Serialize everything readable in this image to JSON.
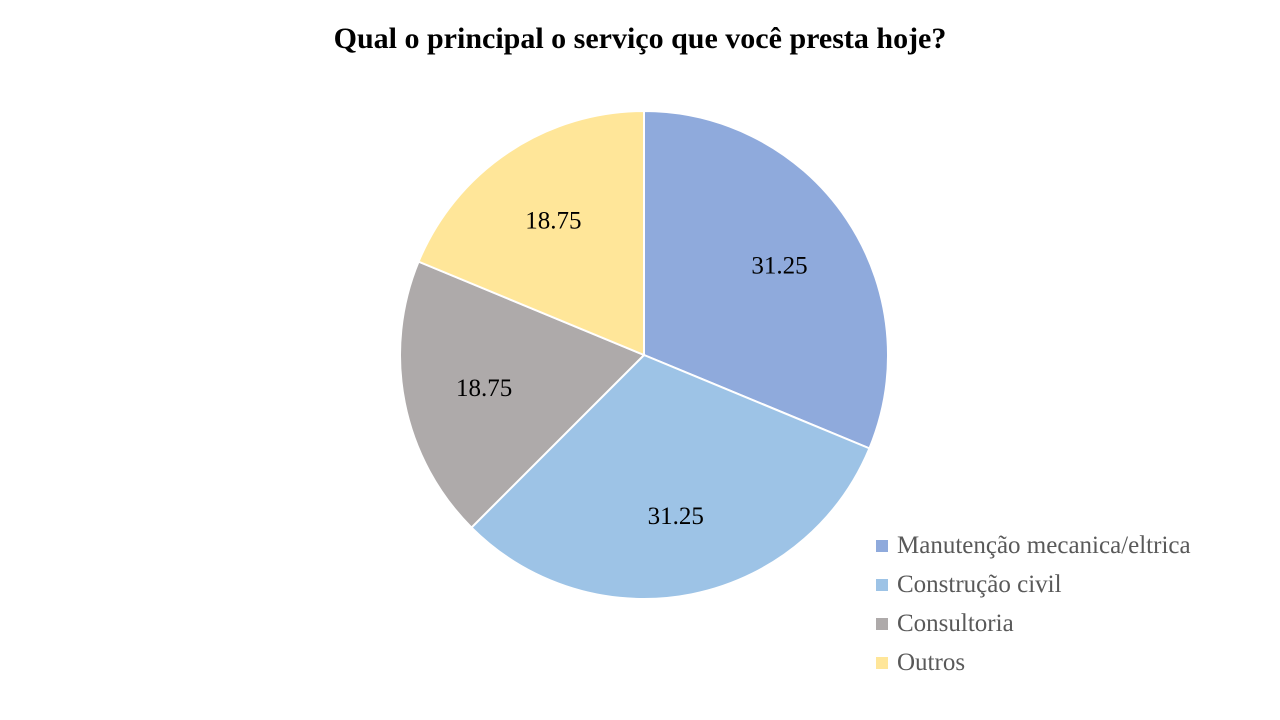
{
  "chart_data": {
    "type": "pie",
    "title": "Qual o principal o serviço que você presta hoje?",
    "categories": [
      "Manutenção mecanica/eltrica",
      "Construção civil",
      "Consultoria",
      "Outros"
    ],
    "values": [
      31.25,
      31.25,
      18.75,
      18.75
    ],
    "data_labels": [
      "31.25",
      "31.25",
      "18.75",
      "18.75"
    ],
    "colors": [
      "#8FAADC",
      "#9DC3E6",
      "#AEAAAA",
      "#FFE699"
    ],
    "legend_position": "bottom-right",
    "start_angle": "12 o'clock",
    "direction": "clockwise"
  }
}
